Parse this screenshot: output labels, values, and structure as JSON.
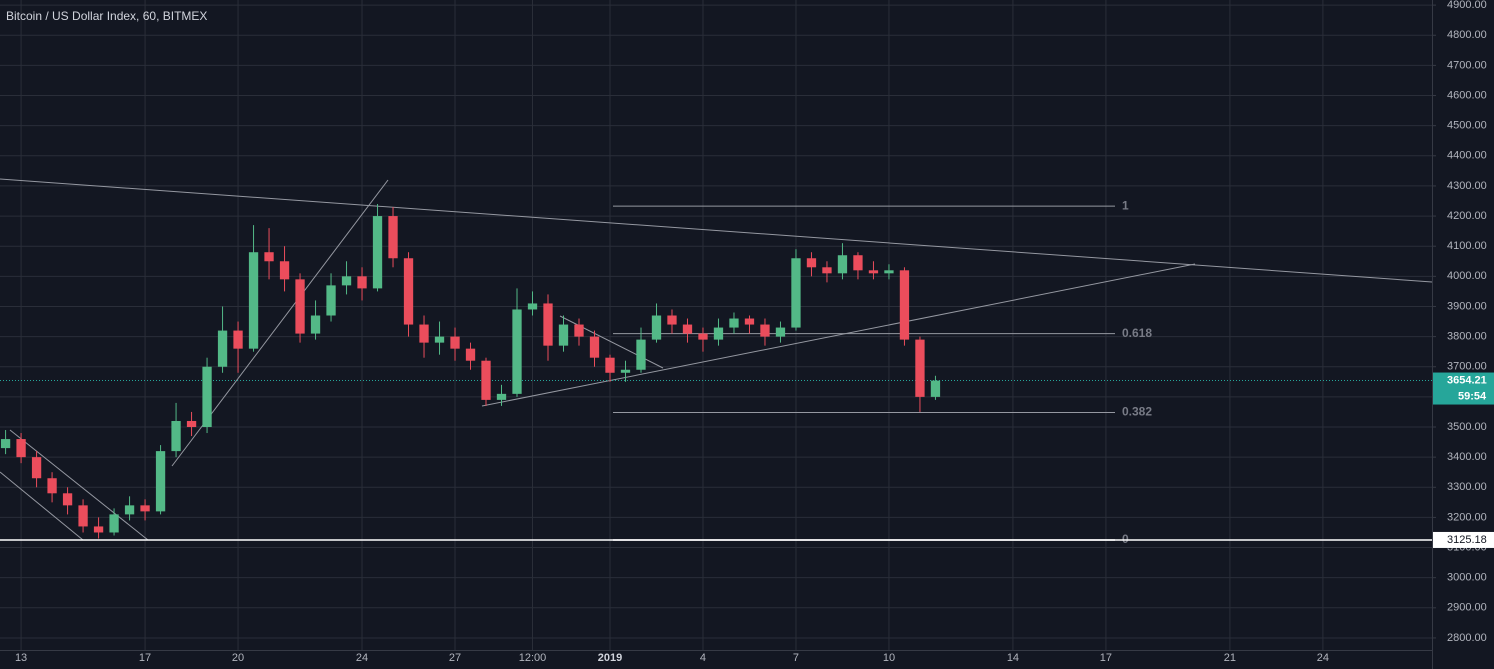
{
  "chart_data": {
    "type": "candlestick",
    "title": "Bitcoin / US Dollar Index, 60, BITMEX",
    "xlim": [
      12.32,
      58.52
    ],
    "xticks": [
      13,
      17,
      20,
      24,
      27,
      {
        "value": 29.5,
        "label": "12:00"
      },
      {
        "value": 32,
        "label": "2019"
      },
      {
        "value": 35,
        "label": "4"
      },
      {
        "value": 38,
        "label": "7"
      },
      {
        "value": 41,
        "label": "10"
      },
      {
        "value": 45,
        "label": "14"
      },
      {
        "value": 48,
        "label": "17"
      },
      {
        "value": 52,
        "label": "21"
      },
      {
        "value": 55,
        "label": "24"
      }
    ],
    "ylim": [
      2760,
      4917
    ],
    "yticks": [
      {
        "value": 2800,
        "label": "2800.00"
      },
      {
        "value": 2900,
        "label": "2900.00"
      },
      {
        "value": 3000,
        "label": "3000.00"
      },
      {
        "value": 3100,
        "label": "3100.00"
      },
      {
        "value": 3200,
        "label": "3200.00"
      },
      {
        "value": 3300,
        "label": "3300.00"
      },
      {
        "value": 3400,
        "label": "3400.00"
      },
      {
        "value": 3500,
        "label": "3500.00"
      },
      {
        "value": 3600,
        "label": "3600.00"
      },
      {
        "value": 3700,
        "label": "3700.00"
      },
      {
        "value": 3800,
        "label": "3800.00"
      },
      {
        "value": 3900,
        "label": "3900.00"
      },
      {
        "value": 4000,
        "label": "4000.00"
      },
      {
        "value": 4100,
        "label": "4100.00"
      },
      {
        "value": 4200,
        "label": "4200.00"
      },
      {
        "value": 4300,
        "label": "4300.00"
      },
      {
        "value": 4400,
        "label": "4400.00"
      },
      {
        "value": 4500,
        "label": "4500.00"
      },
      {
        "value": 4600,
        "label": "4600.00"
      },
      {
        "value": 4700,
        "label": "4700.00"
      },
      {
        "value": 4800,
        "label": "4800.00"
      },
      {
        "value": 4900,
        "label": "4900.00"
      }
    ],
    "grid": true,
    "up_color": "#53b987",
    "down_color": "#eb4d5c",
    "x": [
      12.5,
      13,
      13.5,
      14,
      14.5,
      15,
      15.5,
      16,
      16.5,
      17,
      17.5,
      18,
      18.5,
      19,
      19.5,
      20,
      20.5,
      21,
      21.5,
      22,
      22.5,
      23,
      23.5,
      24,
      24.5,
      25,
      25.5,
      26,
      26.5,
      27,
      27.5,
      28,
      28.5,
      29,
      29.5,
      30,
      30.5,
      31,
      31.5,
      32,
      32.5,
      33,
      33.5,
      34,
      34.5,
      35,
      35.5,
      36,
      36.5,
      37,
      37.5,
      38,
      38.5,
      39,
      39.5,
      40,
      40.5,
      41,
      41.5,
      42,
      42.5
    ],
    "open": [
      3430,
      3460,
      3400,
      3330,
      3280,
      3240,
      3170,
      3150,
      3210,
      3240,
      3220,
      3420,
      3520,
      3500,
      3700,
      3820,
      3760,
      4080,
      4050,
      3990,
      3810,
      3870,
      3970,
      4000,
      3960,
      4200,
      4060,
      3840,
      3780,
      3800,
      3760,
      3720,
      3590,
      3610,
      3890,
      3910,
      3770,
      3840,
      3800,
      3730,
      3680,
      3690,
      3790,
      3870,
      3840,
      3810,
      3790,
      3830,
      3860,
      3840,
      3800,
      3830,
      4060,
      4030,
      4010,
      4070,
      4020,
      4010,
      4020,
      3790,
      3600
    ],
    "high": [
      3490,
      3480,
      3420,
      3350,
      3300,
      3260,
      3200,
      3230,
      3270,
      3260,
      3440,
      3580,
      3550,
      3730,
      3900,
      3850,
      4170,
      4160,
      4100,
      4010,
      3920,
      4010,
      4050,
      4030,
      4240,
      4230,
      4080,
      3870,
      3850,
      3830,
      3780,
      3730,
      3640,
      3960,
      3950,
      3940,
      3870,
      3860,
      3820,
      3740,
      3720,
      3830,
      3910,
      3890,
      3860,
      3830,
      3860,
      3880,
      3870,
      3860,
      3850,
      4090,
      4080,
      4050,
      4110,
      4080,
      4050,
      4040,
      4030,
      3800,
      3670
    ],
    "low": [
      3410,
      3380,
      3300,
      3250,
      3210,
      3150,
      3130,
      3140,
      3190,
      3190,
      3210,
      3400,
      3470,
      3480,
      3680,
      3680,
      3750,
      3990,
      3950,
      3780,
      3790,
      3850,
      3940,
      3920,
      3950,
      4030,
      3800,
      3730,
      3740,
      3720,
      3690,
      3570,
      3570,
      3600,
      3870,
      3720,
      3750,
      3770,
      3700,
      3650,
      3650,
      3680,
      3780,
      3810,
      3780,
      3750,
      3770,
      3810,
      3810,
      3770,
      3780,
      3820,
      4000,
      3980,
      3990,
      3990,
      3990,
      3990,
      3770,
      3550,
      3590
    ],
    "close": [
      3460,
      3400,
      3330,
      3280,
      3240,
      3170,
      3150,
      3210,
      3240,
      3220,
      3420,
      3520,
      3500,
      3700,
      3820,
      3760,
      4080,
      4050,
      3990,
      3810,
      3870,
      3970,
      4000,
      3960,
      4200,
      4060,
      3840,
      3780,
      3800,
      3760,
      3720,
      3590,
      3610,
      3890,
      3910,
      3770,
      3840,
      3800,
      3730,
      3680,
      3690,
      3790,
      3870,
      3840,
      3810,
      3790,
      3830,
      3860,
      3840,
      3800,
      3830,
      4060,
      4030,
      4010,
      4070,
      4020,
      4010,
      4020,
      3790,
      3600,
      3654
    ],
    "fib_levels": [
      {
        "ratio": 1,
        "price": 4233
      },
      {
        "ratio": 0.618,
        "price": 3810
      },
      {
        "ratio": 0.382,
        "price": 3548
      },
      {
        "ratio": 0,
        "price": 3125.18
      }
    ],
    "last_price": 3654.21,
    "countdown": "59:54",
    "marked_price": 3125.18
  }
}
